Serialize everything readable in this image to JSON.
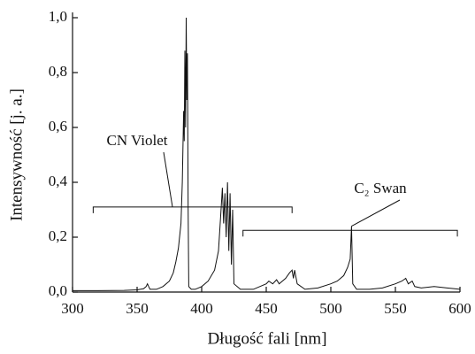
{
  "chart_data": {
    "type": "line",
    "x_label": "Długość fali [nm]",
    "y_label": "Intensywność [j. a.]",
    "xlim": [
      300,
      600
    ],
    "xticks": [
      300,
      350,
      400,
      450,
      500,
      550,
      600
    ],
    "ylim": [
      0,
      1.0
    ],
    "yticks": [
      {
        "value": 0,
        "label": "0,0"
      },
      {
        "value": 0.2,
        "label": "0,2"
      },
      {
        "value": 0.4,
        "label": "0,4"
      },
      {
        "value": 0.6,
        "label": "0,6"
      },
      {
        "value": 0.8,
        "label": "0,8"
      },
      {
        "value": 1.0,
        "label": "1,0"
      }
    ],
    "series": [
      {
        "color": "#111111",
        "x": [
          300,
          320,
          340,
          350,
          355,
          357,
          358,
          359,
          360,
          365,
          370,
          375,
          378,
          380,
          382,
          384,
          385,
          386,
          386.5,
          387,
          387.5,
          388,
          388.5,
          389,
          389.5,
          390,
          392,
          395,
          400,
          405,
          410,
          413,
          415,
          416,
          417,
          418,
          419,
          420,
          421,
          422,
          423,
          424,
          425,
          430,
          440,
          450,
          452,
          455,
          458,
          460,
          465,
          468,
          470,
          471,
          472,
          474,
          480,
          490,
          500,
          505,
          510,
          513,
          515,
          516,
          517,
          520,
          530,
          540,
          550,
          555,
          558,
          560,
          563,
          565,
          570,
          580,
          590,
          600
        ],
        "values": [
          0.005,
          0.005,
          0.006,
          0.008,
          0.012,
          0.02,
          0.03,
          0.02,
          0.01,
          0.01,
          0.02,
          0.04,
          0.07,
          0.11,
          0.16,
          0.25,
          0.4,
          0.66,
          0.55,
          0.88,
          0.6,
          1.0,
          0.7,
          0.87,
          0.3,
          0.02,
          0.01,
          0.01,
          0.02,
          0.04,
          0.08,
          0.15,
          0.3,
          0.38,
          0.25,
          0.36,
          0.2,
          0.4,
          0.15,
          0.36,
          0.1,
          0.3,
          0.03,
          0.01,
          0.01,
          0.03,
          0.04,
          0.03,
          0.045,
          0.03,
          0.05,
          0.07,
          0.08,
          0.05,
          0.08,
          0.03,
          0.01,
          0.015,
          0.03,
          0.04,
          0.06,
          0.09,
          0.12,
          0.24,
          0.03,
          0.01,
          0.01,
          0.015,
          0.03,
          0.04,
          0.05,
          0.03,
          0.04,
          0.02,
          0.015,
          0.02,
          0.015,
          0.01
        ]
      }
    ],
    "annotations": [
      {
        "text": "CN Violet",
        "range": [
          316,
          470
        ],
        "level": 0.31
      },
      {
        "text": "C₂ Swan",
        "range": [
          432,
          598
        ],
        "level": 0.225
      }
    ]
  }
}
